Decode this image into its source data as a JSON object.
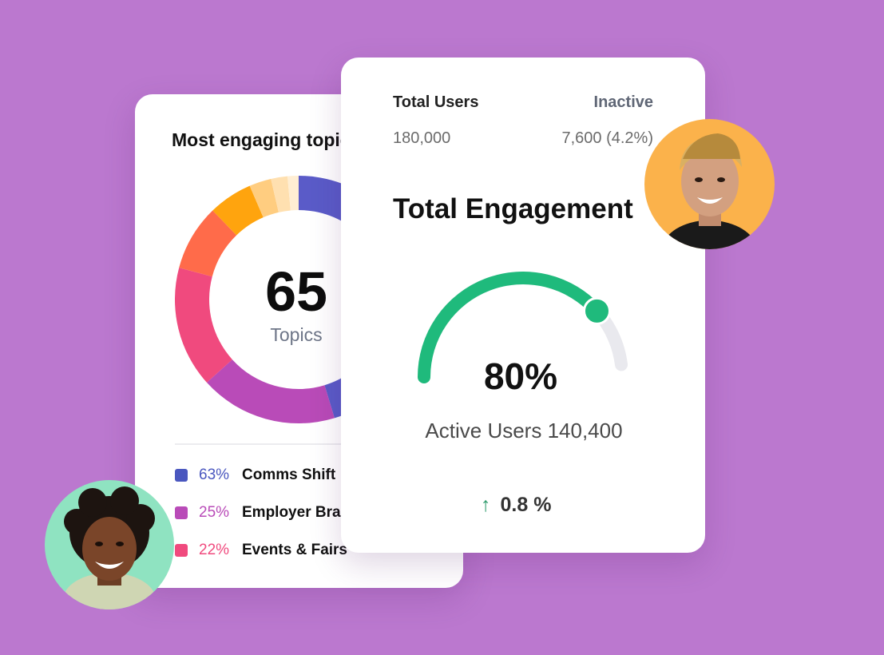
{
  "topics_card": {
    "title": "Most engaging topics",
    "center_value": "65",
    "center_label": "Topics",
    "segments": [
      {
        "color": "#5a5bc8",
        "value": 63
      },
      {
        "color": "#b94bb8",
        "value": 25
      },
      {
        "color": "#f04a7e",
        "value": 22
      },
      {
        "color": "#ff6b4a",
        "value": 12
      },
      {
        "color": "#ffa40e",
        "value": 8
      },
      {
        "color": "#ffcd80",
        "value": 4
      },
      {
        "color": "#ffe0b0",
        "value": 3
      },
      {
        "color": "#ffeed3",
        "value": 2
      }
    ],
    "legend": [
      {
        "color": "#4a57bf",
        "pct": "63%",
        "name": "Comms Shift"
      },
      {
        "color": "#b94bb8",
        "pct": "25%",
        "name": "Employer Brand"
      },
      {
        "color": "#f04a7e",
        "pct": "22%",
        "name": "Events & Fairs"
      }
    ]
  },
  "engagement_card": {
    "total_users_label": "Total Users",
    "total_users_value": "180,000",
    "inactive_label": "Inactive",
    "inactive_value": "7,600 (4.2%)",
    "title": "Total Engagement",
    "gauge_percent": "80%",
    "gauge_fraction": 0.8,
    "gauge_color": "#1fba7c",
    "gauge_track_color": "#e9e9ee",
    "active_users_text": "Active Users 140,400",
    "trend_arrow": "↑",
    "trend_value": "0.8 %"
  },
  "avatars": {
    "left": {
      "icon": "person-avatar-icon",
      "bg": "#8fe3c1"
    },
    "right": {
      "icon": "person-avatar-icon",
      "bg": "#fbb24b"
    }
  },
  "background_color": "#bb78cf"
}
